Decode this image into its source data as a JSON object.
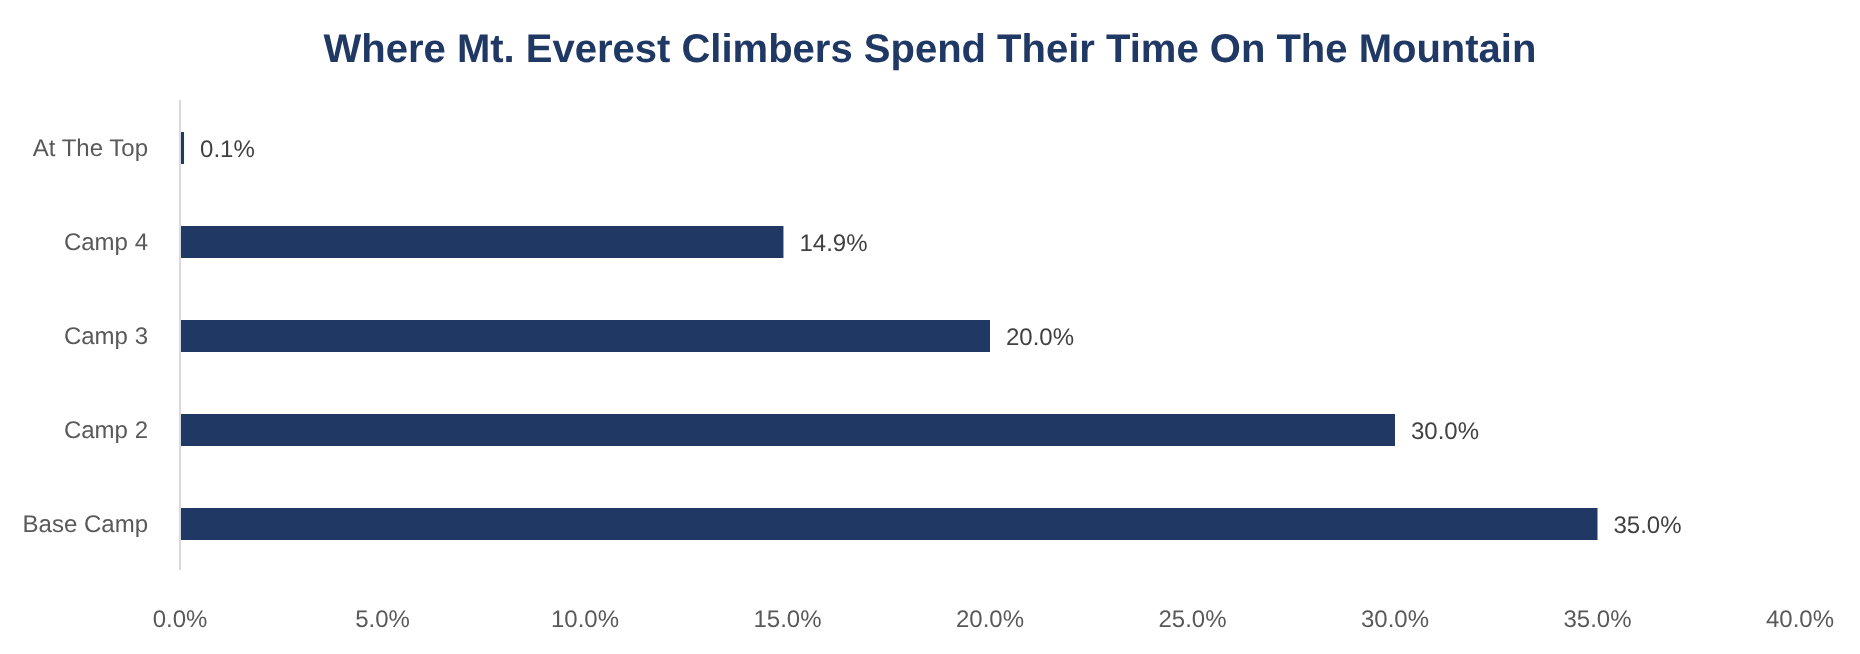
{
  "chart_data": {
    "type": "bar",
    "orientation": "horizontal",
    "title": "Where Mt. Everest Climbers Spend Their Time On The Mountain",
    "categories": [
      "At The Top",
      "Camp 4",
      "Camp 3",
      "Camp 2",
      "Base Camp"
    ],
    "values": [
      0.1,
      14.9,
      20.0,
      30.0,
      35.0
    ],
    "value_labels": [
      "0.1%",
      "14.9%",
      "20.0%",
      "30.0%",
      "35.0%"
    ],
    "color": "#203864",
    "xlim": [
      0,
      40
    ],
    "xticks": [
      {
        "value": 0,
        "label": "0.0%"
      },
      {
        "value": 5,
        "label": "5.0%"
      },
      {
        "value": 10,
        "label": "10.0%"
      },
      {
        "value": 15,
        "label": "15.0%"
      },
      {
        "value": 20,
        "label": "20.0%"
      },
      {
        "value": 25,
        "label": "25.0%"
      },
      {
        "value": 30,
        "label": "30.0%"
      },
      {
        "value": 35,
        "label": "35.0%"
      },
      {
        "value": 40,
        "label": "40.0%"
      }
    ],
    "grid": false,
    "legend": false
  }
}
